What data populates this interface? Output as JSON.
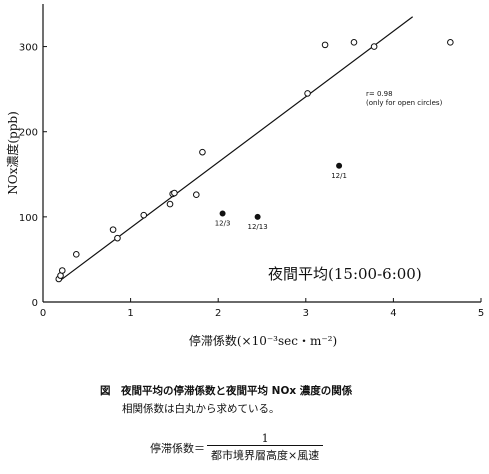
{
  "chart_data": {
    "type": "scatter",
    "title": "夜間平均(15:00-6:00)",
    "xlabel": "停滞係数(×10⁻³sec・m⁻²)",
    "ylabel": "NOx濃度(ppb)",
    "xlim": [
      0,
      5
    ],
    "ylim": [
      0,
      350
    ],
    "xticks": [
      0,
      1,
      2,
      3,
      4,
      5
    ],
    "yticks": [
      0,
      100,
      200,
      300
    ],
    "grid": false,
    "series": [
      {
        "marker": "open-circle",
        "points": [
          {
            "x": 0.18,
            "y": 27
          },
          {
            "x": 0.2,
            "y": 31
          },
          {
            "x": 0.22,
            "y": 37
          },
          {
            "x": 0.38,
            "y": 56
          },
          {
            "x": 0.8,
            "y": 85
          },
          {
            "x": 0.85,
            "y": 75
          },
          {
            "x": 1.15,
            "y": 102
          },
          {
            "x": 1.45,
            "y": 115
          },
          {
            "x": 1.48,
            "y": 127
          },
          {
            "x": 1.5,
            "y": 128
          },
          {
            "x": 1.75,
            "y": 126
          },
          {
            "x": 1.82,
            "y": 176
          },
          {
            "x": 3.02,
            "y": 245
          },
          {
            "x": 3.22,
            "y": 302
          },
          {
            "x": 3.55,
            "y": 305
          },
          {
            "x": 3.78,
            "y": 300
          },
          {
            "x": 4.65,
            "y": 305
          }
        ]
      },
      {
        "marker": "filled-circle",
        "points": [
          {
            "x": 2.05,
            "y": 104,
            "label": "12/3"
          },
          {
            "x": 2.45,
            "y": 100,
            "label": "12/13"
          },
          {
            "x": 3.38,
            "y": 160,
            "label": "12/1"
          }
        ]
      }
    ],
    "regression_line": {
      "x": [
        0.18,
        4.22
      ],
      "y": [
        24,
        335
      ]
    },
    "annotation_lines": [
      "r= 0.98",
      "(only for open circles)"
    ]
  },
  "caption": {
    "line1": "図　夜間平均の停滞係数と夜間平均 NOx 濃度の関係",
    "line2": "相関係数は白丸から求めている。"
  },
  "formula": {
    "lhs": "停滞係数＝",
    "numerator": "1",
    "denominator": "都市境界層高度×風速"
  }
}
